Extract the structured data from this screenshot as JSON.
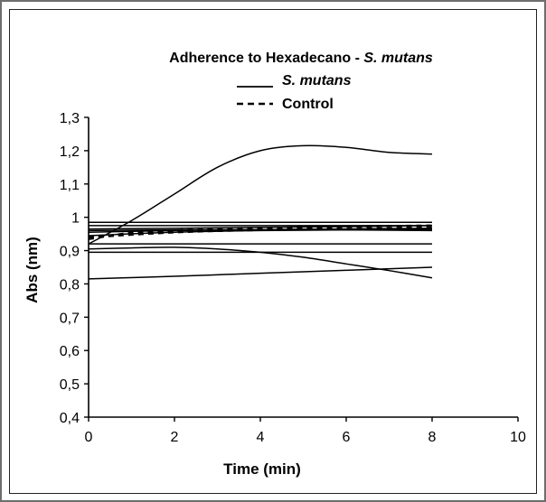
{
  "chart_data": {
    "type": "line",
    "title": {
      "prefix": "Adherence to Hexadecano - ",
      "italic": "S. mutans"
    },
    "xlabel": "Time (min)",
    "ylabel": "Abs (nm)",
    "xlim": [
      0,
      10
    ],
    "ylim": [
      0.4,
      1.3
    ],
    "xticks": [
      0,
      2,
      4,
      6,
      8,
      10
    ],
    "xtick_labels": [
      "0",
      "2",
      "4",
      "6",
      "8",
      "10"
    ],
    "yticks": [
      0.4,
      0.5,
      0.6,
      0.7,
      0.8,
      0.9,
      1.0,
      1.1,
      1.2,
      1.3
    ],
    "ytick_labels": [
      "0,4",
      "0,5",
      "0,6",
      "0,7",
      "0,8",
      "0,9",
      "1",
      "1,1",
      "1,2",
      "1,3"
    ],
    "grid": false,
    "legend_position": "top-center",
    "legend": [
      {
        "label": "S. mutans",
        "style": "solid",
        "italic": true
      },
      {
        "label": "Control",
        "style": "dashed",
        "italic": false
      }
    ],
    "series": [
      {
        "group": "S. mutans",
        "style": "solid",
        "x": [
          0,
          1,
          2,
          3,
          4,
          5,
          6,
          7,
          8
        ],
        "y": [
          0.92,
          0.99,
          1.07,
          1.15,
          1.2,
          1.215,
          1.21,
          1.195,
          1.19
        ]
      },
      {
        "group": "S. mutans",
        "style": "solid",
        "x": [
          0,
          2,
          4,
          6,
          8
        ],
        "y": [
          0.985,
          0.985,
          0.985,
          0.985,
          0.985
        ]
      },
      {
        "group": "S. mutans",
        "style": "solid",
        "x": [
          0,
          2,
          4,
          6,
          8
        ],
        "y": [
          0.975,
          0.975,
          0.975,
          0.975,
          0.975
        ]
      },
      {
        "group": "S. mutans",
        "style": "solid",
        "x": [
          0,
          2,
          4,
          6,
          8
        ],
        "y": [
          0.965,
          0.967,
          0.97,
          0.972,
          0.975
        ]
      },
      {
        "group": "S. mutans",
        "style": "solid",
        "x": [
          0,
          2,
          4,
          6,
          8
        ],
        "y": [
          0.955,
          0.96,
          0.963,
          0.965,
          0.967
        ]
      },
      {
        "group": "S. mutans",
        "style": "solid",
        "x": [
          0,
          2,
          4,
          6,
          8
        ],
        "y": [
          0.945,
          0.955,
          0.96,
          0.962,
          0.964
        ]
      },
      {
        "group": "S. mutans",
        "style": "solid",
        "x": [
          0,
          2,
          4,
          6,
          8
        ],
        "y": [
          0.96,
          0.962,
          0.963,
          0.962,
          0.96
        ]
      },
      {
        "group": "S. mutans",
        "style": "solid",
        "x": [
          0,
          2,
          4,
          6,
          8
        ],
        "y": [
          0.92,
          0.92,
          0.92,
          0.92,
          0.92
        ]
      },
      {
        "group": "S. mutans",
        "style": "solid",
        "x": [
          0,
          2,
          4,
          6,
          8
        ],
        "y": [
          0.895,
          0.895,
          0.895,
          0.895,
          0.895
        ]
      },
      {
        "group": "S. mutans",
        "style": "solid",
        "x": [
          0,
          1,
          2,
          3,
          4,
          5,
          6,
          7,
          8
        ],
        "y": [
          0.905,
          0.908,
          0.91,
          0.905,
          0.895,
          0.88,
          0.86,
          0.84,
          0.818
        ]
      },
      {
        "group": "S. mutans",
        "style": "solid",
        "x": [
          0,
          2,
          4,
          6,
          8
        ],
        "y": [
          0.815,
          0.823,
          0.832,
          0.841,
          0.85
        ]
      },
      {
        "group": "Control",
        "style": "dashed",
        "x": [
          0,
          1,
          2,
          4,
          6,
          8
        ],
        "y": [
          0.935,
          0.953,
          0.96,
          0.967,
          0.972,
          0.975
        ]
      },
      {
        "group": "Control",
        "style": "dashed",
        "x": [
          0,
          2,
          4,
          6,
          8
        ],
        "y": [
          0.94,
          0.955,
          0.962,
          0.965,
          0.968
        ]
      }
    ]
  }
}
